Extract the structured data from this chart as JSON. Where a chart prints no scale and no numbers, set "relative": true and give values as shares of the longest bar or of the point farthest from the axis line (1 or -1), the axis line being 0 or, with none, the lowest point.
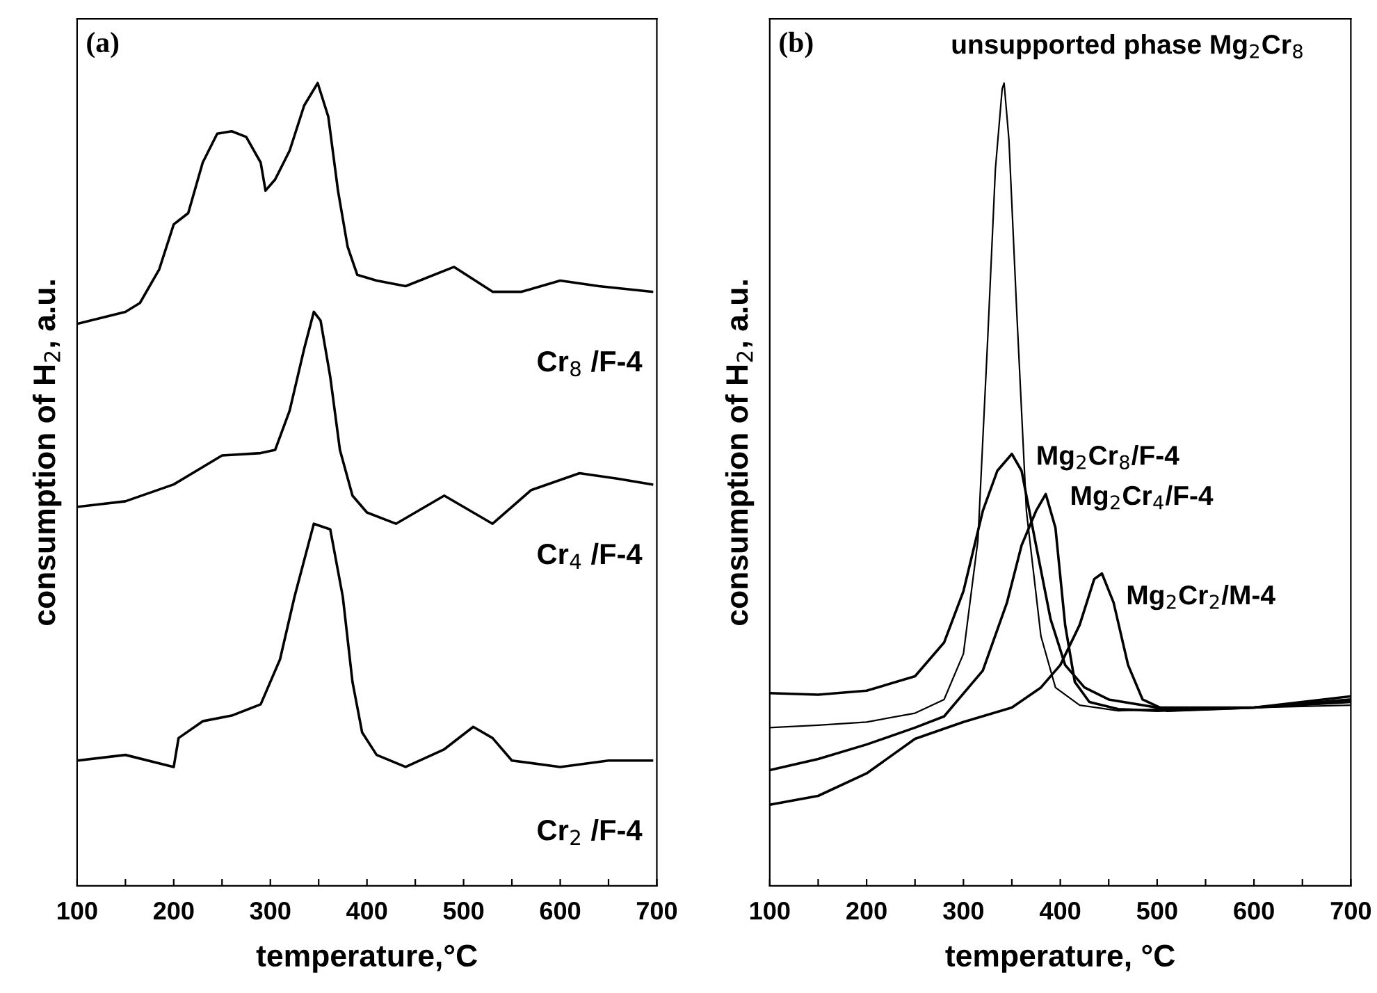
{
  "chart_data": [
    {
      "type": "line",
      "relative": true,
      "annotations": [
        "(a)"
      ],
      "xlabel": "temperature,°C",
      "ylabel": "consumption of H$_{2}$, a.u.",
      "xlim": [
        100,
        700
      ],
      "xticks": [
        100,
        {
          "value": 150,
          "label": null
        },
        200,
        {
          "value": 250,
          "label": null
        },
        300,
        {
          "value": 350,
          "label": null
        },
        400,
        {
          "value": 450,
          "label": null
        },
        500,
        {
          "value": 550,
          "label": null
        },
        600,
        {
          "value": 650,
          "label": null
        },
        700
      ],
      "tick_labels": "x",
      "grid": false,
      "legend": false,
      "series": [
        {
          "name": "Cr$_{8}$ /F-4",
          "color": "#000000",
          "x": [
            100,
            150,
            165,
            185,
            200,
            215,
            230,
            245,
            260,
            275,
            290,
            295,
            305,
            320,
            335,
            349,
            360,
            370,
            380,
            390,
            410,
            440,
            490,
            530,
            560,
            600,
            640,
            695
          ],
          "values": [
            0.7,
            0.715,
            0.726,
            0.768,
            0.824,
            0.838,
            0.901,
            0.937,
            0.94,
            0.933,
            0.901,
            0.866,
            0.88,
            0.916,
            0.972,
            1.0,
            0.958,
            0.866,
            0.796,
            0.761,
            0.754,
            0.747,
            0.771,
            0.74,
            0.74,
            0.754,
            0.747,
            0.74
          ]
        },
        {
          "name": "Cr$_{4}$ /F-4",
          "color": "#000000",
          "x": [
            100,
            150,
            200,
            250,
            290,
            305,
            320,
            335,
            345,
            352,
            362,
            372,
            385,
            400,
            430,
            480,
            530,
            570,
            620,
            660,
            695
          ],
          "values": [
            0.472,
            0.479,
            0.5,
            0.536,
            0.539,
            0.543,
            0.592,
            0.669,
            0.715,
            0.704,
            0.634,
            0.543,
            0.486,
            0.465,
            0.451,
            0.486,
            0.451,
            0.493,
            0.514,
            0.507,
            0.5
          ]
        },
        {
          "name": "Cr$_{2}$ /F-4",
          "color": "#000000",
          "x": [
            100,
            150,
            200,
            205,
            230,
            260,
            290,
            310,
            325,
            345,
            362,
            375,
            385,
            395,
            410,
            440,
            480,
            510,
            530,
            550,
            600,
            650,
            695
          ],
          "values": [
            0.156,
            0.163,
            0.148,
            0.184,
            0.205,
            0.212,
            0.226,
            0.282,
            0.36,
            0.451,
            0.444,
            0.36,
            0.254,
            0.191,
            0.163,
            0.148,
            0.17,
            0.198,
            0.184,
            0.156,
            0.148,
            0.156,
            0.156
          ]
        }
      ]
    },
    {
      "type": "line",
      "relative": true,
      "annotations": [
        "(b)"
      ],
      "xlabel": "temperature, °C",
      "ylabel": "consumption of H$_{2}$, a.u.",
      "xlim": [
        100,
        700
      ],
      "xticks": [
        100,
        {
          "value": 150,
          "label": null
        },
        200,
        {
          "value": 250,
          "label": null
        },
        300,
        {
          "value": 350,
          "label": null
        },
        400,
        {
          "value": 450,
          "label": null
        },
        500,
        {
          "value": 550,
          "label": null
        },
        600,
        {
          "value": 650,
          "label": null
        },
        700
      ],
      "tick_labels": "x",
      "grid": false,
      "legend": false,
      "series": [
        {
          "name": "unsupported phase Mg$_{2}$Cr$_{8}$",
          "color": "#000000",
          "x": [
            100,
            150,
            200,
            250,
            280,
            300,
            315,
            325,
            333,
            340,
            342,
            347,
            355,
            365,
            380,
            395,
            420,
            460,
            500,
            600,
            700
          ],
          "values": [
            0.197,
            0.2,
            0.204,
            0.215,
            0.232,
            0.289,
            0.431,
            0.68,
            0.893,
            0.993,
            1.0,
            0.929,
            0.716,
            0.467,
            0.311,
            0.247,
            0.225,
            0.218,
            0.22,
            0.222,
            0.225
          ]
        },
        {
          "name": "Mg$_{2}$Cr$_{8}$/F-4",
          "color": "#000000",
          "x": [
            100,
            150,
            200,
            250,
            280,
            300,
            320,
            335,
            350,
            360,
            375,
            390,
            405,
            425,
            450,
            500,
            600,
            700
          ],
          "values": [
            0.24,
            0.238,
            0.243,
            0.261,
            0.303,
            0.367,
            0.467,
            0.517,
            0.538,
            0.517,
            0.424,
            0.332,
            0.275,
            0.247,
            0.232,
            0.222,
            0.222,
            0.232
          ]
        },
        {
          "name": "Mg$_{2}$Cr$_{4}$/F-4",
          "color": "#000000",
          "x": [
            100,
            150,
            200,
            250,
            280,
            320,
            345,
            360,
            375,
            385,
            395,
            405,
            415,
            430,
            460,
            500,
            600,
            700
          ],
          "values": [
            0.144,
            0.158,
            0.176,
            0.197,
            0.211,
            0.268,
            0.353,
            0.424,
            0.467,
            0.488,
            0.446,
            0.325,
            0.254,
            0.229,
            0.22,
            0.218,
            0.222,
            0.229
          ]
        },
        {
          "name": "Mg$_{2}$Cr$_{2}$/M-4",
          "color": "#000000",
          "x": [
            100,
            150,
            200,
            250,
            300,
            350,
            380,
            400,
            420,
            435,
            443,
            455,
            470,
            485,
            510,
            600,
            700
          ],
          "values": [
            0.101,
            0.112,
            0.14,
            0.183,
            0.204,
            0.222,
            0.247,
            0.275,
            0.325,
            0.382,
            0.389,
            0.353,
            0.275,
            0.232,
            0.218,
            0.222,
            0.236
          ]
        }
      ]
    }
  ]
}
